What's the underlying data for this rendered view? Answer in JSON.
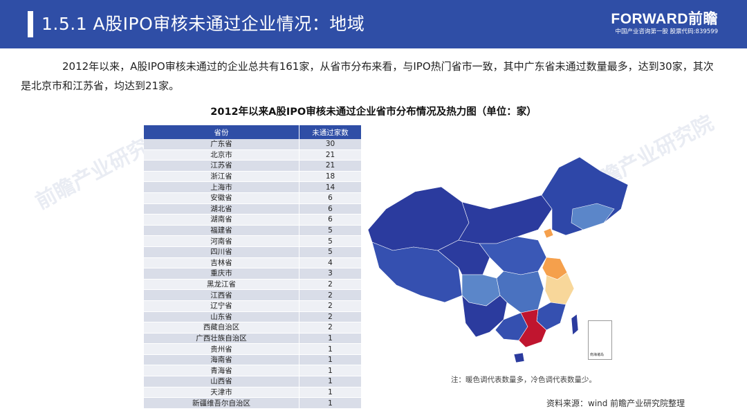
{
  "header": {
    "title": "1.5.1 A股IPO审核未通过企业情况：地域",
    "brand_logo": "FORWARD前瞻",
    "brand_sub": "中国产业咨询第一股 股票代码:839599"
  },
  "intro": "2012年以来，A股IPO审核未通过的企业总共有161家，从省市分布来看，与IPO热门省市一致，其中广东省未通过数量最多，达到30家，其次是北京市和江苏省，均达到21家。",
  "chart_data": {
    "type": "table",
    "title": "2012年以来A股IPO审核未通过企业省市分布情况及热力图（单位：家）",
    "columns": [
      "省份",
      "未通过家数"
    ],
    "rows": [
      [
        "广东省",
        "30"
      ],
      [
        "北京市",
        "21"
      ],
      [
        "江苏省",
        "21"
      ],
      [
        "浙江省",
        "18"
      ],
      [
        "上海市",
        "14"
      ],
      [
        "安徽省",
        "6"
      ],
      [
        "湖北省",
        "6"
      ],
      [
        "湖南省",
        "6"
      ],
      [
        "福建省",
        "5"
      ],
      [
        "河南省",
        "5"
      ],
      [
        "四川省",
        "5"
      ],
      [
        "吉林省",
        "4"
      ],
      [
        "重庆市",
        "3"
      ],
      [
        "黑龙江省",
        "2"
      ],
      [
        "江西省",
        "2"
      ],
      [
        "辽宁省",
        "2"
      ],
      [
        "山东省",
        "2"
      ],
      [
        "西藏自治区",
        "2"
      ],
      [
        "广西壮族自治区",
        "1"
      ],
      [
        "贵州省",
        "1"
      ],
      [
        "海南省",
        "1"
      ],
      [
        "青海省",
        "1"
      ],
      [
        "山西省",
        "1"
      ],
      [
        "天津市",
        "1"
      ],
      [
        "新疆维吾尔自治区",
        "1"
      ]
    ]
  },
  "colors": {
    "header": "#2f4ea6",
    "map_base": "#2b3b9e",
    "map_high": "#c0152f",
    "map_mid_high": "#f5a04c",
    "map_mid": "#f8d79a",
    "map_low": "#5b86c9"
  },
  "map": {
    "inset_label": "南海诸岛"
  },
  "note": "注：暖色调代表数量多，冷色调代表数量少。",
  "source": "资料来源：wind 前瞻产业研究院整理",
  "watermark": "前瞻产业研究院"
}
